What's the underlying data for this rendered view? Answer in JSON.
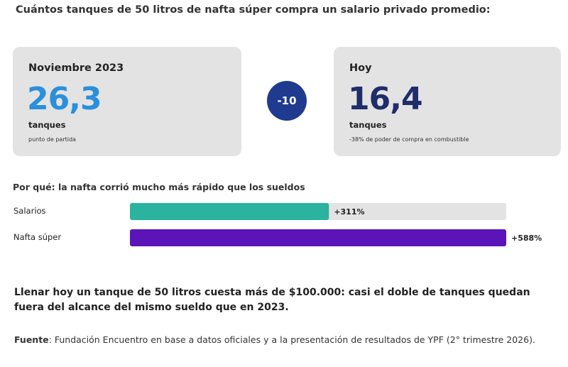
{
  "heading": "Cuántos tanques de 50 litros de nafta súper compra un salario privado promedio:",
  "cards": {
    "left": {
      "label": "Noviembre 2023",
      "value": "26,3",
      "unit": "tanques",
      "note": "punto de partida"
    },
    "diff": "-10",
    "right": {
      "label": "Hoy",
      "value": "16,4",
      "unit": "tanques",
      "note": "-38% de poder de compra en combustible"
    }
  },
  "colors": {
    "salarios": "#2bb3a0",
    "nafta": "#5a14b8",
    "track": "#e3e3e3",
    "blue": "#2a8fdc",
    "navy": "#1f2e6a",
    "circle": "#1f3b8f"
  },
  "subheading": "Por qué: la nafta corrió mucho más rápido que los sueldos",
  "chart_data": {
    "type": "bar",
    "orientation": "horizontal",
    "categories": [
      "Salarios",
      "Nafta súper"
    ],
    "values": [
      311,
      588
    ],
    "value_labels": [
      "+311%",
      "+588%"
    ],
    "xlim": [
      0,
      588
    ]
  },
  "conclusion": "Llenar hoy un tanque de 50 litros cuesta más de $100.000: casi el doble de tanques quedan fuera del alcance del mismo sueldo que en 2023.",
  "source": {
    "label": "Fuente",
    "text": ": Fundación Encuentro en base a datos oficiales y a la presentación de resultados de YPF (2° trimestre 2026)."
  }
}
